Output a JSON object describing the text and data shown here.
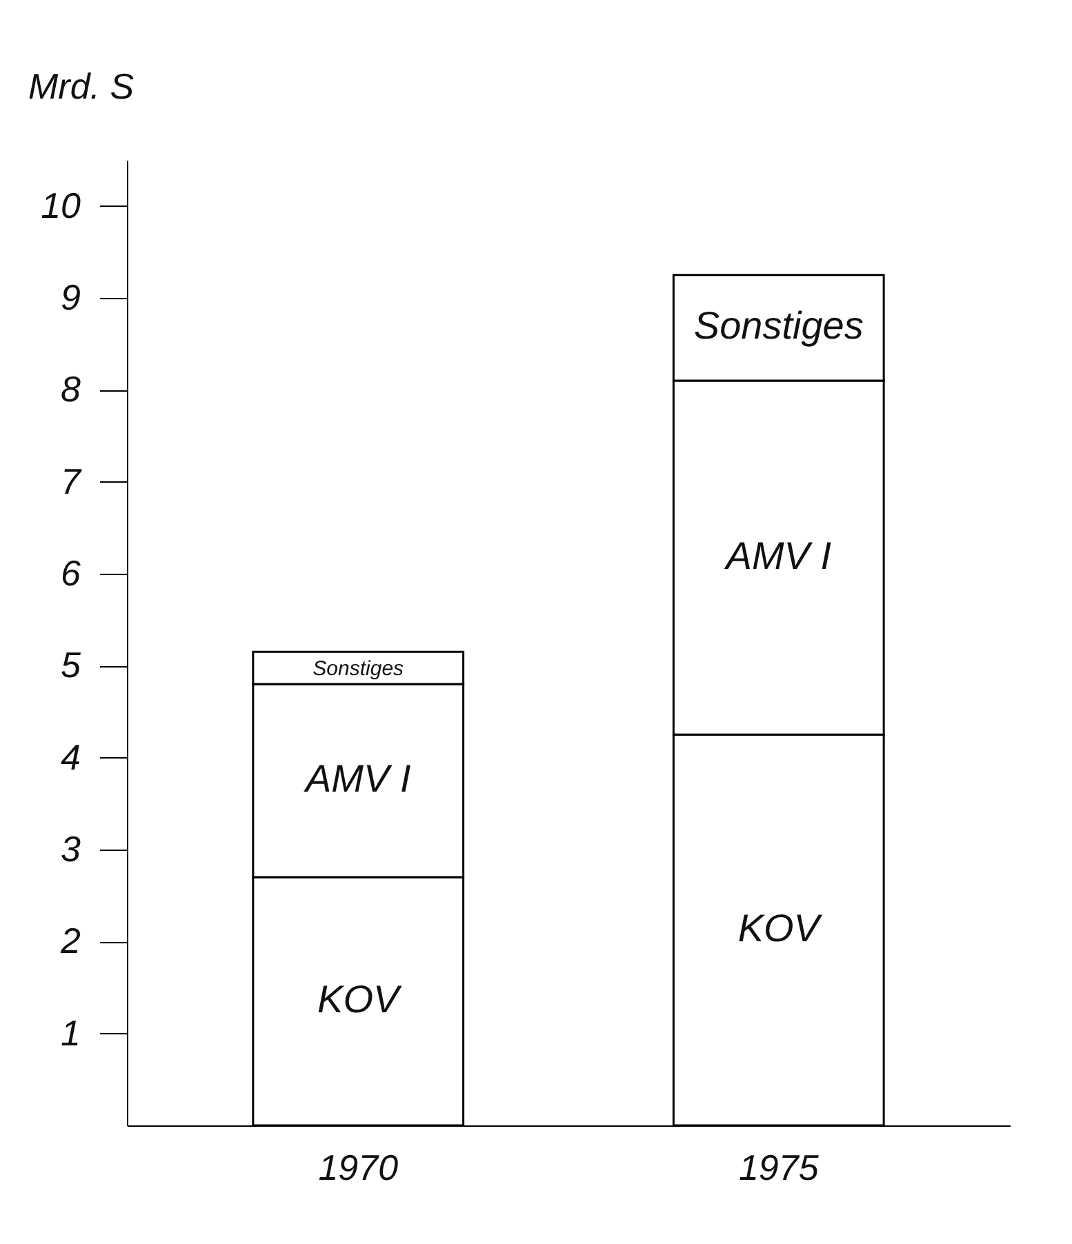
{
  "chart_data": {
    "type": "bar",
    "stacked": true,
    "ylabel": "Mrd. S",
    "categories": [
      "1970",
      "1975"
    ],
    "series": [
      {
        "name": "KOV",
        "color": "#ffffff",
        "values": [
          2.7,
          4.25
        ]
      },
      {
        "name": "AMV I",
        "color": "#ffffff",
        "values": [
          2.1,
          3.85
        ]
      },
      {
        "name": "Sonstiges",
        "color": "#ffffff",
        "values": [
          0.35,
          1.15
        ]
      }
    ],
    "ylim": [
      0,
      10.5
    ],
    "yticks": [
      1,
      2,
      3,
      4,
      5,
      6,
      7,
      8,
      9,
      10
    ],
    "grid": false,
    "legend": false
  }
}
